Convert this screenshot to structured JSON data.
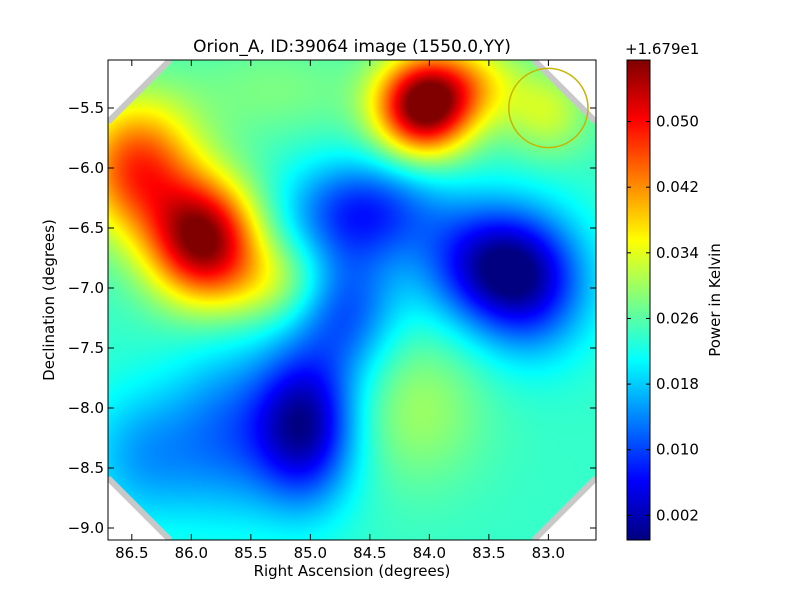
{
  "chart_data": {
    "type": "heatmap",
    "title": "Orion_A, ID:39064 image (1550.0,YY)",
    "xlabel": "Right Ascension (degrees)",
    "ylabel": "Declination (degrees)",
    "xlim": [
      86.7,
      82.6
    ],
    "ylim": [
      -9.1,
      -5.1
    ],
    "x_ticks": [
      86.5,
      86.0,
      85.5,
      85.0,
      84.5,
      84.0,
      83.5,
      83.0
    ],
    "x_tick_labels": [
      "86.5",
      "86.0",
      "85.5",
      "85.0",
      "84.5",
      "84.0",
      "83.5",
      "83.0"
    ],
    "y_ticks": [
      -5.5,
      -6.0,
      -6.5,
      -7.0,
      -7.5,
      -8.0,
      -8.5,
      -9.0
    ],
    "y_tick_labels": [
      "−5.5",
      "−6.0",
      "−6.5",
      "−7.0",
      "−7.5",
      "−8.0",
      "−8.5",
      "−9.0"
    ],
    "grid": false,
    "colormap": "jet",
    "colorbar": {
      "label": "Power in Kelvin",
      "offset_label": "+1.679e1",
      "range": [
        -0.001,
        0.0575
      ],
      "ticks": [
        0.002,
        0.01,
        0.018,
        0.026,
        0.034,
        0.042,
        0.05
      ],
      "tick_labels": [
        "0.002",
        "0.010",
        "0.018",
        "0.026",
        "0.034",
        "0.042",
        "0.050"
      ]
    },
    "background_value": 0.024,
    "features": [
      {
        "ra": 84.05,
        "dec": -5.5,
        "value": 0.057,
        "sigma_ra": 0.28,
        "sigma_dec": 0.28
      },
      {
        "ra": 83.7,
        "dec": -5.3,
        "value": 0.036,
        "sigma_ra": 0.35,
        "sigma_dec": 0.25
      },
      {
        "ra": 85.9,
        "dec": -6.6,
        "value": 0.057,
        "sigma_ra": 0.32,
        "sigma_dec": 0.35
      },
      {
        "ra": 86.45,
        "dec": -6.0,
        "value": 0.047,
        "sigma_ra": 0.35,
        "sigma_dec": 0.4
      },
      {
        "ra": 85.3,
        "dec": -5.35,
        "value": 0.028,
        "sigma_ra": 0.55,
        "sigma_dec": 0.3
      },
      {
        "ra": 85.3,
        "dec": -6.95,
        "value": 0.032,
        "sigma_ra": 0.35,
        "sigma_dec": 0.25
      },
      {
        "ra": 85.05,
        "dec": -8.15,
        "value": 0.001,
        "sigma_ra": 0.3,
        "sigma_dec": 0.45
      },
      {
        "ra": 84.55,
        "dec": -6.35,
        "value": 0.009,
        "sigma_ra": 0.45,
        "sigma_dec": 0.3
      },
      {
        "ra": 84.7,
        "dec": -7.15,
        "value": 0.011,
        "sigma_ra": 0.3,
        "sigma_dec": 0.4
      },
      {
        "ra": 83.5,
        "dec": -6.8,
        "value": 0.006,
        "sigma_ra": 0.4,
        "sigma_dec": 0.35
      },
      {
        "ra": 83.15,
        "dec": -7.0,
        "value": 0.01,
        "sigma_ra": 0.35,
        "sigma_dec": 0.4
      },
      {
        "ra": 84.1,
        "dec": -8.0,
        "value": 0.03,
        "sigma_ra": 0.4,
        "sigma_dec": 0.45
      },
      {
        "ra": 85.7,
        "dec": -8.2,
        "value": 0.014,
        "sigma_ra": 0.35,
        "sigma_dec": 0.5
      },
      {
        "ra": 86.4,
        "dec": -8.4,
        "value": 0.016,
        "sigma_ra": 0.35,
        "sigma_dec": 0.4
      },
      {
        "ra": 83.0,
        "dec": -5.55,
        "value": 0.032,
        "sigma_ra": 0.25,
        "sigma_dec": 0.25
      }
    ],
    "annotations": [
      {
        "type": "circle",
        "ra": 83.0,
        "dec": -5.5,
        "radius_deg": 0.33,
        "color": "#c8b400"
      }
    ],
    "mask_corners": true
  },
  "colors": {
    "background": "#ffffff",
    "corner_mask": "#c8c8c8",
    "circle": "#c8b400"
  }
}
